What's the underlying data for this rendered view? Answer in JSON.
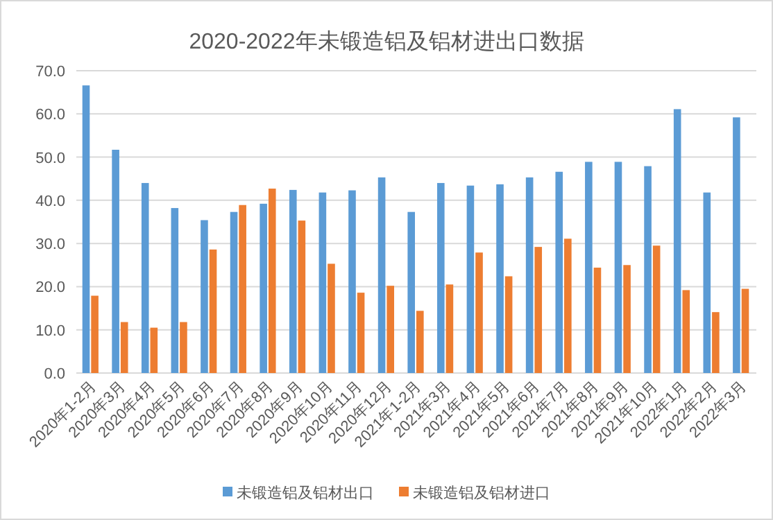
{
  "chart_data": {
    "type": "bar",
    "title": "2020-2022年未锻造铝及铝材进出口数据",
    "categories": [
      "2020年1-2月",
      "2020年3月",
      "2020年4月",
      "2020年5月",
      "2020年6月",
      "2020年7月",
      "2020年8月",
      "2020年9月",
      "2020年10月",
      "2020年11月",
      "2020年12月",
      "2021年1-2月",
      "2021年3月",
      "2021年4月",
      "2021年5月",
      "2021年6月",
      "2021年7月",
      "2021年8月",
      "2021年9月",
      "2021年10月",
      "2022年1月",
      "2022年2月",
      "2022年3月"
    ],
    "series": [
      {
        "name": "未锻造铝及铝材出口",
        "color": "#5b9bd5",
        "values": [
          66.6,
          51.7,
          44.0,
          38.2,
          35.4,
          37.3,
          39.2,
          42.4,
          41.8,
          42.3,
          45.3,
          37.3,
          44.0,
          43.4,
          43.7,
          45.3,
          46.6,
          48.9,
          48.9,
          47.9,
          61.1,
          41.8,
          59.2
        ]
      },
      {
        "name": "未锻造铝及铝材进口",
        "color": "#ed7d31",
        "values": [
          17.9,
          11.8,
          10.5,
          11.8,
          28.6,
          38.9,
          42.7,
          35.3,
          25.3,
          18.6,
          20.2,
          14.4,
          20.5,
          27.9,
          22.4,
          29.2,
          31.1,
          24.4,
          25.0,
          29.5,
          19.2,
          14.1,
          19.5
        ]
      }
    ],
    "ylim": [
      0,
      70
    ],
    "yticks": [
      {
        "value": 0,
        "label": "0.0"
      },
      {
        "value": 10,
        "label": "10.0"
      },
      {
        "value": 20,
        "label": "20.0"
      },
      {
        "value": 30,
        "label": "30.0"
      },
      {
        "value": 40,
        "label": "40.0"
      },
      {
        "value": 50,
        "label": "50.0"
      },
      {
        "value": 60,
        "label": "60.0"
      },
      {
        "value": 70,
        "label": "70.0"
      }
    ],
    "grid": "y",
    "legend": "bottom"
  }
}
